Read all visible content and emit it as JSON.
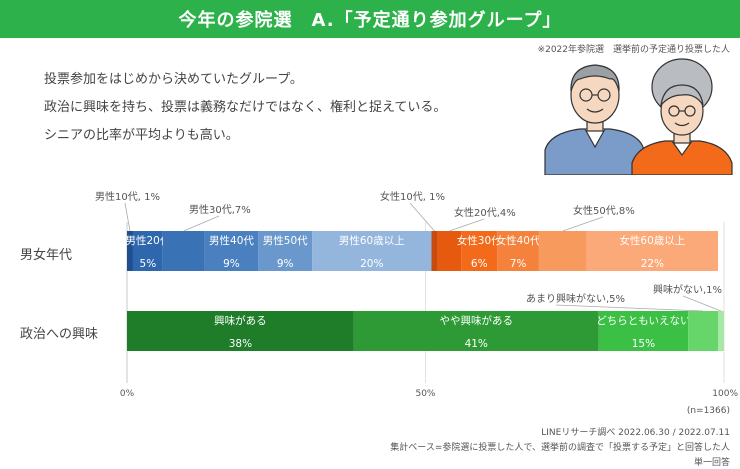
{
  "title": "今年の参院選　A.「予定通り参加グループ」",
  "note": "※2022年参院選　選挙前の予定通り投票した人",
  "description": [
    "投票参加をはじめから決めていたグループ。",
    "政治に興味を持ち、投票は義務なだけではなく、権利と捉えている。",
    "シニアの比率が平均よりも高い。"
  ],
  "footer": {
    "n": "(n=1366)",
    "source": "LINEリサーチ調べ 2022.06.30 / 2022.07.11",
    "base": "集計ベース=参院選に投票した人で、選挙前の調査で「投票する予定」と回答した人",
    "type": "単一回答"
  },
  "chart_data": {
    "type": "bar",
    "orientation": "horizontal-stacked-100",
    "xlim": [
      0,
      100
    ],
    "xticks": [
      "0%",
      "50%",
      "100%"
    ],
    "rows": [
      {
        "label": "男女年代",
        "segments": [
          {
            "name": "男性10代",
            "value": 1,
            "label": "男性10代, 1%",
            "color": "#1f4f8f",
            "inside": false
          },
          {
            "name": "男性20代",
            "value": 5,
            "label": "男性20代",
            "pct": "5%",
            "color": "#2e67ad",
            "inside": true
          },
          {
            "name": "男性30代",
            "value": 7,
            "label": "男性30代,7%",
            "color": "#3a72b6",
            "inside": false
          },
          {
            "name": "男性40代",
            "value": 9,
            "label": "男性40代",
            "pct": "9%",
            "color": "#4a80c0",
            "inside": true
          },
          {
            "name": "男性50代",
            "value": 9,
            "label": "男性50代",
            "pct": "9%",
            "color": "#6a98cc",
            "inside": true
          },
          {
            "name": "男性60歳以上",
            "value": 20,
            "label": "男性60歳以上",
            "pct": "20%",
            "color": "#94b6dc",
            "inside": true
          },
          {
            "name": "女性10代",
            "value": 1,
            "label": "女性10代, 1%",
            "color": "#c94a0e",
            "inside": false
          },
          {
            "name": "女性20代",
            "value": 4,
            "label": "女性20代,4%",
            "color": "#e65a10",
            "inside": false
          },
          {
            "name": "女性30代",
            "value": 6,
            "label": "女性30代",
            "pct": "6%",
            "color": "#f26a1a",
            "inside": true
          },
          {
            "name": "女性40代",
            "value": 7,
            "label": "女性40代",
            "pct": "7%",
            "color": "#f5823c",
            "inside": true
          },
          {
            "name": "女性50代",
            "value": 8,
            "label": "女性50代,8%",
            "color": "#f79a5e",
            "inside": false
          },
          {
            "name": "女性60歳以上",
            "value": 22,
            "label": "女性60歳以上",
            "pct": "22%",
            "color": "#fba978",
            "inside": true
          }
        ]
      },
      {
        "label": "政治への興味",
        "segments": [
          {
            "name": "興味がある",
            "value": 38,
            "label": "興味がある",
            "pct": "38%",
            "color": "#1f7d2a",
            "inside": true
          },
          {
            "name": "やや興味がある",
            "value": 41,
            "label": "やや興味がある",
            "pct": "41%",
            "color": "#2e9a35",
            "inside": true
          },
          {
            "name": "どちらともいえない",
            "value": 15,
            "label": "どちらともいえない",
            "pct": "15%",
            "color": "#3cbf45",
            "inside": true
          },
          {
            "name": "あまり興味がない",
            "value": 5,
            "label": "あまり興味がない,5%",
            "color": "#66d66a",
            "inside": false
          },
          {
            "name": "興味がない",
            "value": 1,
            "label": "興味がない,1%",
            "color": "#a8e8a6",
            "inside": false
          }
        ]
      }
    ]
  }
}
